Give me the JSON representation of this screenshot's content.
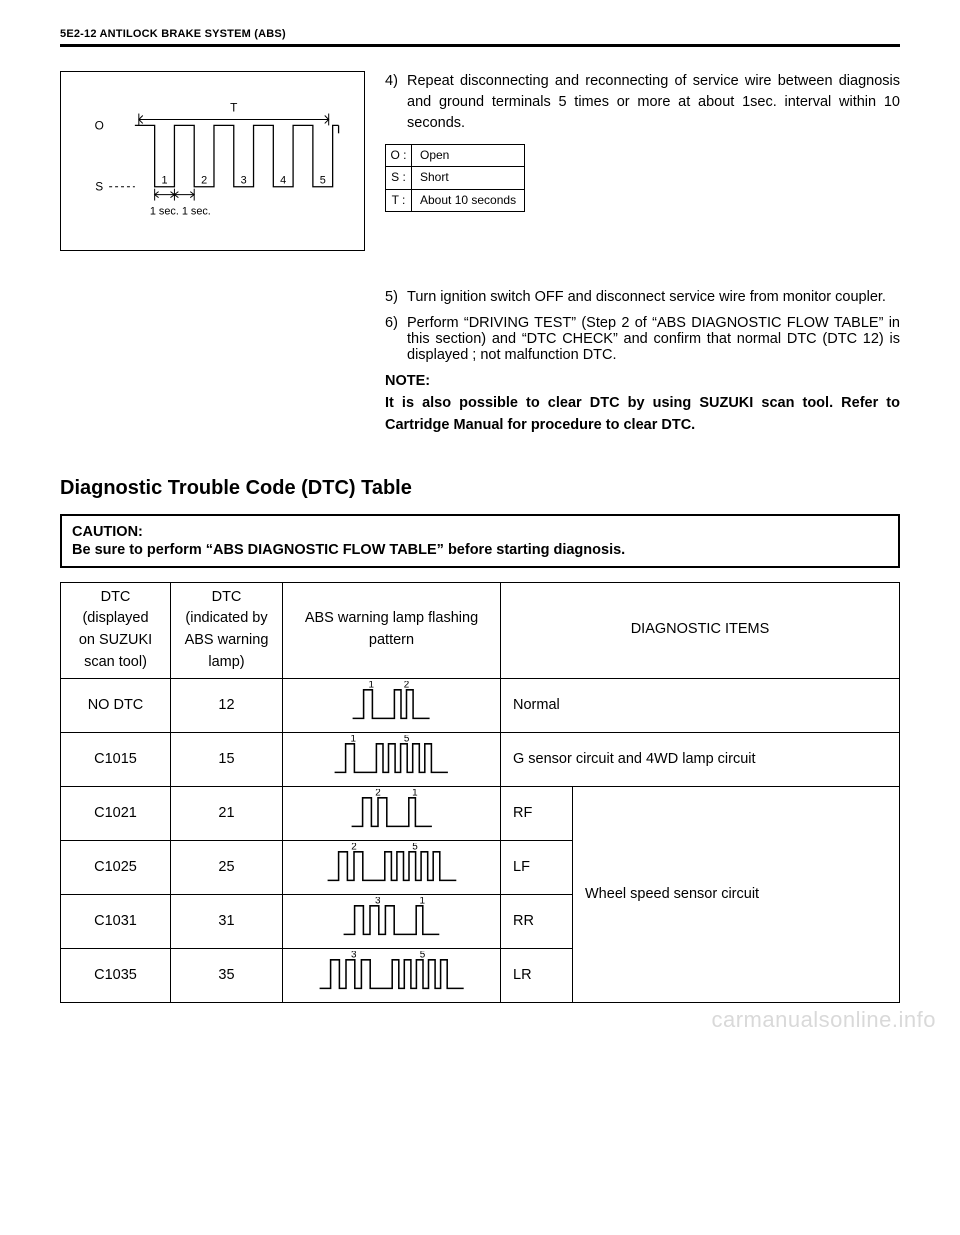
{
  "header": "5E2-12 ANTILOCK BRAKE SYSTEM (ABS)",
  "timingDiagram": {
    "O_label": "O",
    "S_label": "S",
    "T_label": "T",
    "pulse_nums": [
      "1",
      "2",
      "3",
      "4",
      "5"
    ],
    "bottom_label": "1 sec. 1 sec.",
    "line_color": "#000000"
  },
  "step4": {
    "num": "4)",
    "text": "Repeat disconnecting and reconnecting of service wire between diagnosis and ground terminals 5 times or more at about 1sec. interval within 10 seconds."
  },
  "ost": {
    "rows": [
      {
        "k": "O :",
        "v": "Open"
      },
      {
        "k": "S :",
        "v": "Short"
      },
      {
        "k": "T :",
        "v": "About 10 seconds"
      }
    ]
  },
  "step5": {
    "num": "5)",
    "text": "Turn ignition switch OFF and disconnect service wire from monitor coupler."
  },
  "step6": {
    "num": "6)",
    "text": "Perform “DRIVING TEST” (Step 2 of “ABS DIAGNOSTIC FLOW TABLE” in this section) and “DTC CHECK” and confirm that normal DTC (DTC 12) is displayed ; not malfunction DTC."
  },
  "note": {
    "label": "NOTE:",
    "body": "It is also possible to clear DTC by using SUZUKI scan tool. Refer to Cartridge Manual for procedure to clear DTC."
  },
  "sectionTitle": "Diagnostic Trouble Code (DTC) Table",
  "caution": {
    "label": "CAUTION:",
    "text": "Be sure to perform “ABS DIAGNOSTIC FLOW TABLE” before starting diagnosis."
  },
  "dtcTable": {
    "headers": {
      "col1": "DTC\n(displayed on SUZUKI scan tool)",
      "col2": "DTC\n(indicated by ABS warning lamp)",
      "col3": "ABS warning lamp flashing pattern",
      "col4": "DIAGNOSTIC ITEMS"
    },
    "rows": [
      {
        "code": "NO DTC",
        "lamp": "12",
        "tens": 1,
        "ones": 2,
        "diag": "Normal",
        "span": "single"
      },
      {
        "code": "C1015",
        "lamp": "15",
        "tens": 1,
        "ones": 5,
        "diag": "G sensor circuit and 4WD lamp circuit",
        "span": "single"
      },
      {
        "code": "C1021",
        "lamp": "21",
        "tens": 2,
        "ones": 1,
        "pos": "RF",
        "group": "Wheel speed sensor circuit"
      },
      {
        "code": "C1025",
        "lamp": "25",
        "tens": 2,
        "ones": 5,
        "pos": "LF"
      },
      {
        "code": "C1031",
        "lamp": "31",
        "tens": 3,
        "ones": 1,
        "pos": "RR"
      },
      {
        "code": "C1035",
        "lamp": "35",
        "tens": 3,
        "ones": 5,
        "pos": "LR"
      }
    ],
    "col_widths": {
      "c1": "110",
      "c2": "110",
      "c3": "220",
      "c4a": "70",
      "c4b": "auto"
    }
  },
  "watermark": "carmanualsonline.info"
}
